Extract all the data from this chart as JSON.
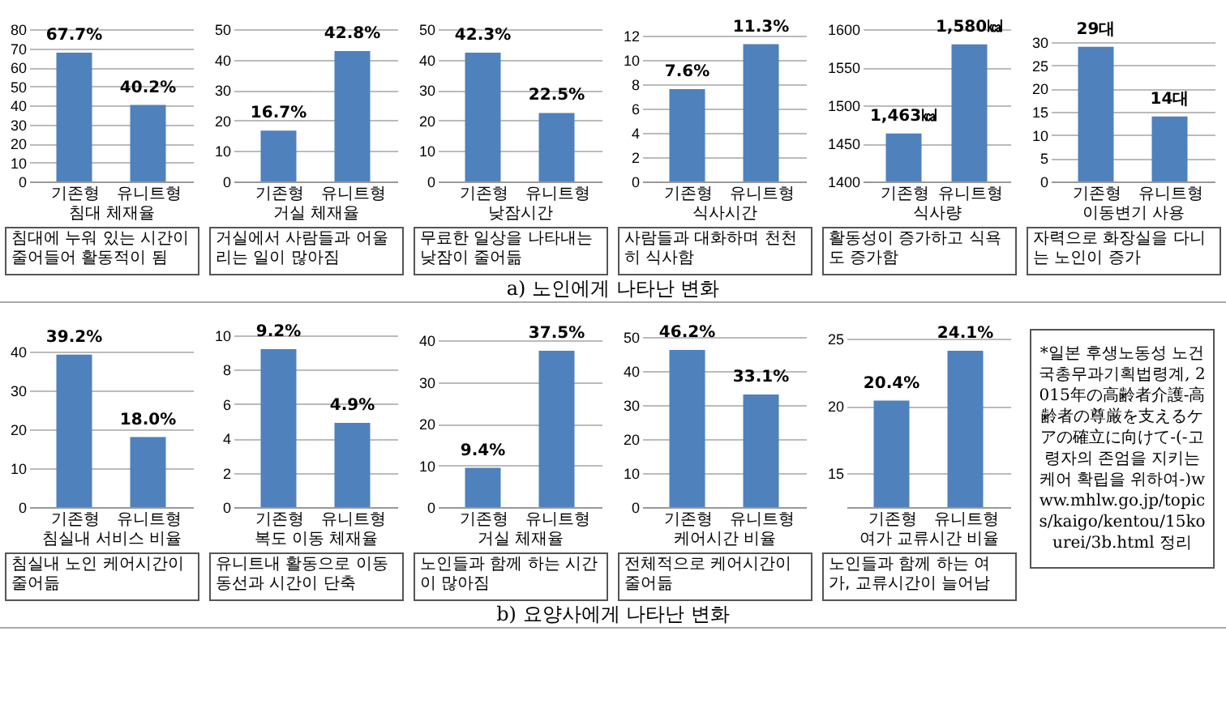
{
  "chart_data": [
    {
      "type": "bar",
      "xlabel": "침대 체재율",
      "categories": [
        "기존형",
        "유니트형"
      ],
      "values": [
        67.7,
        40.2
      ],
      "value_labels": [
        "67.7%",
        "40.2%"
      ],
      "color": "#4f81bd",
      "ylim": [
        0,
        80
      ],
      "yticks": [
        0,
        10,
        20,
        30,
        40,
        50,
        60,
        70,
        80
      ],
      "grid": "y",
      "annotations": [
        "침대에 누워 있는 시간이 줄어들어 활동적이 됨"
      ]
    },
    {
      "type": "bar",
      "xlabel": "거실 체재율",
      "categories": [
        "기존형",
        "유니트형"
      ],
      "values": [
        16.7,
        42.8
      ],
      "value_labels": [
        "16.7%",
        "42.8%"
      ],
      "color": "#4f81bd",
      "ylim": [
        0,
        50
      ],
      "yticks": [
        0,
        10,
        20,
        30,
        40,
        50
      ],
      "grid": "y",
      "annotations": [
        "거실에서 사람들과 어울리는 일이 많아짐"
      ]
    },
    {
      "type": "bar",
      "xlabel": "낮잠시간",
      "categories": [
        "기존형",
        "유니트형"
      ],
      "values": [
        42.3,
        22.5
      ],
      "value_labels": [
        "42.3%",
        "22.5%"
      ],
      "color": "#4f81bd",
      "ylim": [
        0,
        50
      ],
      "yticks": [
        0,
        10,
        20,
        30,
        40,
        50
      ],
      "grid": "y",
      "annotations": [
        "무료한 일상을 나타내는 낮잠이 줄어듦",
        "a) 노인에게 나타난 변화"
      ]
    },
    {
      "type": "bar",
      "xlabel": "식사시간",
      "categories": [
        "기존형",
        "유니트형"
      ],
      "values": [
        7.6,
        11.3
      ],
      "value_labels": [
        "7.6%",
        "11.3%"
      ],
      "color": "#4f81bd",
      "ylim": [
        0,
        12
      ],
      "yticks": [
        0,
        2,
        4,
        6,
        8,
        10,
        12
      ],
      "grid": "y",
      "annotations": [
        "사람들과 대화하며 천천히 식사함"
      ]
    },
    {
      "type": "bar",
      "xlabel": "식사량",
      "categories": [
        "기존형",
        "유니트형"
      ],
      "values": [
        1463,
        1580
      ],
      "value_labels": [
        "1,463㎉",
        "1,580㎉"
      ],
      "color": "#4f81bd",
      "ylim": [
        1400,
        1600
      ],
      "yticks": [
        1400,
        1450,
        1500,
        1550,
        1600
      ],
      "grid": "y",
      "annotations": [
        "활동성이 증가하고 식욕도 증가함"
      ]
    },
    {
      "type": "bar",
      "xlabel": "이동변기 사용",
      "categories": [
        "기존형",
        "유니트형"
      ],
      "values": [
        29,
        14
      ],
      "value_labels": [
        "29대",
        "14대"
      ],
      "color": "#4f81bd",
      "ylim": [
        0,
        30
      ],
      "yticks": [
        0,
        5,
        10,
        15,
        20,
        25,
        30
      ],
      "grid": "y",
      "annotations": [
        "자력으로 화장실을 다니는 노인이 증가"
      ]
    },
    {
      "type": "bar",
      "xlabel": "침실내 서비스 비율",
      "categories": [
        "기존형",
        "유니트형"
      ],
      "values": [
        39.2,
        18.0
      ],
      "value_labels": [
        "39.2%",
        "18.0%"
      ],
      "color": "#4f81bd",
      "ylim": [
        0,
        40
      ],
      "yticks": [
        0,
        10,
        20,
        30,
        40
      ],
      "grid": "y",
      "annotations": [
        "침실내 노인 케어시간이 줄어듦"
      ]
    },
    {
      "type": "bar",
      "xlabel": "복도 이동 체재율",
      "categories": [
        "기존형",
        "유니트형"
      ],
      "values": [
        9.2,
        4.9
      ],
      "value_labels": [
        "9.2%",
        "4.9%"
      ],
      "color": "#4f81bd",
      "ylim": [
        0,
        10
      ],
      "yticks": [
        0,
        2,
        4,
        6,
        8,
        10
      ],
      "grid": "y",
      "annotations": [
        "유니트내 활동으로 이동동선과 시간이 단축"
      ]
    },
    {
      "type": "bar",
      "xlabel": "거실 체재율",
      "categories": [
        "기존형",
        "유니트형"
      ],
      "values": [
        9.4,
        37.5
      ],
      "value_labels": [
        "9.4%",
        "37.5%"
      ],
      "color": "#4f81bd",
      "ylim": [
        0,
        40
      ],
      "yticks": [
        0,
        10,
        20,
        30,
        40
      ],
      "grid": "y",
      "annotations": [
        "노인들과 함께 하는 시간이 많아짐",
        "b) 요양사에게 나타난 변화"
      ]
    },
    {
      "type": "bar",
      "xlabel": "케어시간 비율",
      "categories": [
        "기존형",
        "유니트형"
      ],
      "values": [
        46.2,
        33.1
      ],
      "value_labels": [
        "46.2%",
        "33.1%"
      ],
      "color": "#4f81bd",
      "ylim": [
        0,
        50
      ],
      "yticks": [
        0,
        10,
        20,
        30,
        40,
        50
      ],
      "grid": "y",
      "annotations": [
        "전체적으로 케어시간이 줄어듦"
      ]
    },
    {
      "type": "bar",
      "xlabel": "여가 교류시간 비율",
      "categories": [
        "기존형",
        "유니트형"
      ],
      "values": [
        20.4,
        24.1
      ],
      "value_labels": [
        "20.4%",
        "24.1%"
      ],
      "color": "#4f81bd",
      "ylim": [
        12.5,
        25
      ],
      "yticks": [
        15,
        20,
        25
      ],
      "grid": "y",
      "annotations": [
        "노인들과 함께 하는 여가, 교류시간이 늘어남"
      ]
    },
    {
      "type": "other",
      "annotations": [
        "*일본 후생노동성 노건국총무과기획법령계, 2015年の高齢者介護-高齢者の尊厳を支えるケアの確立に向けて-(-고령자의 존엄을 지키는 케어 확립을 위하여-)www.mhlw.go.jp/topics/kaigo/kentou/15kourei/3b.html 정리"
      ]
    }
  ]
}
